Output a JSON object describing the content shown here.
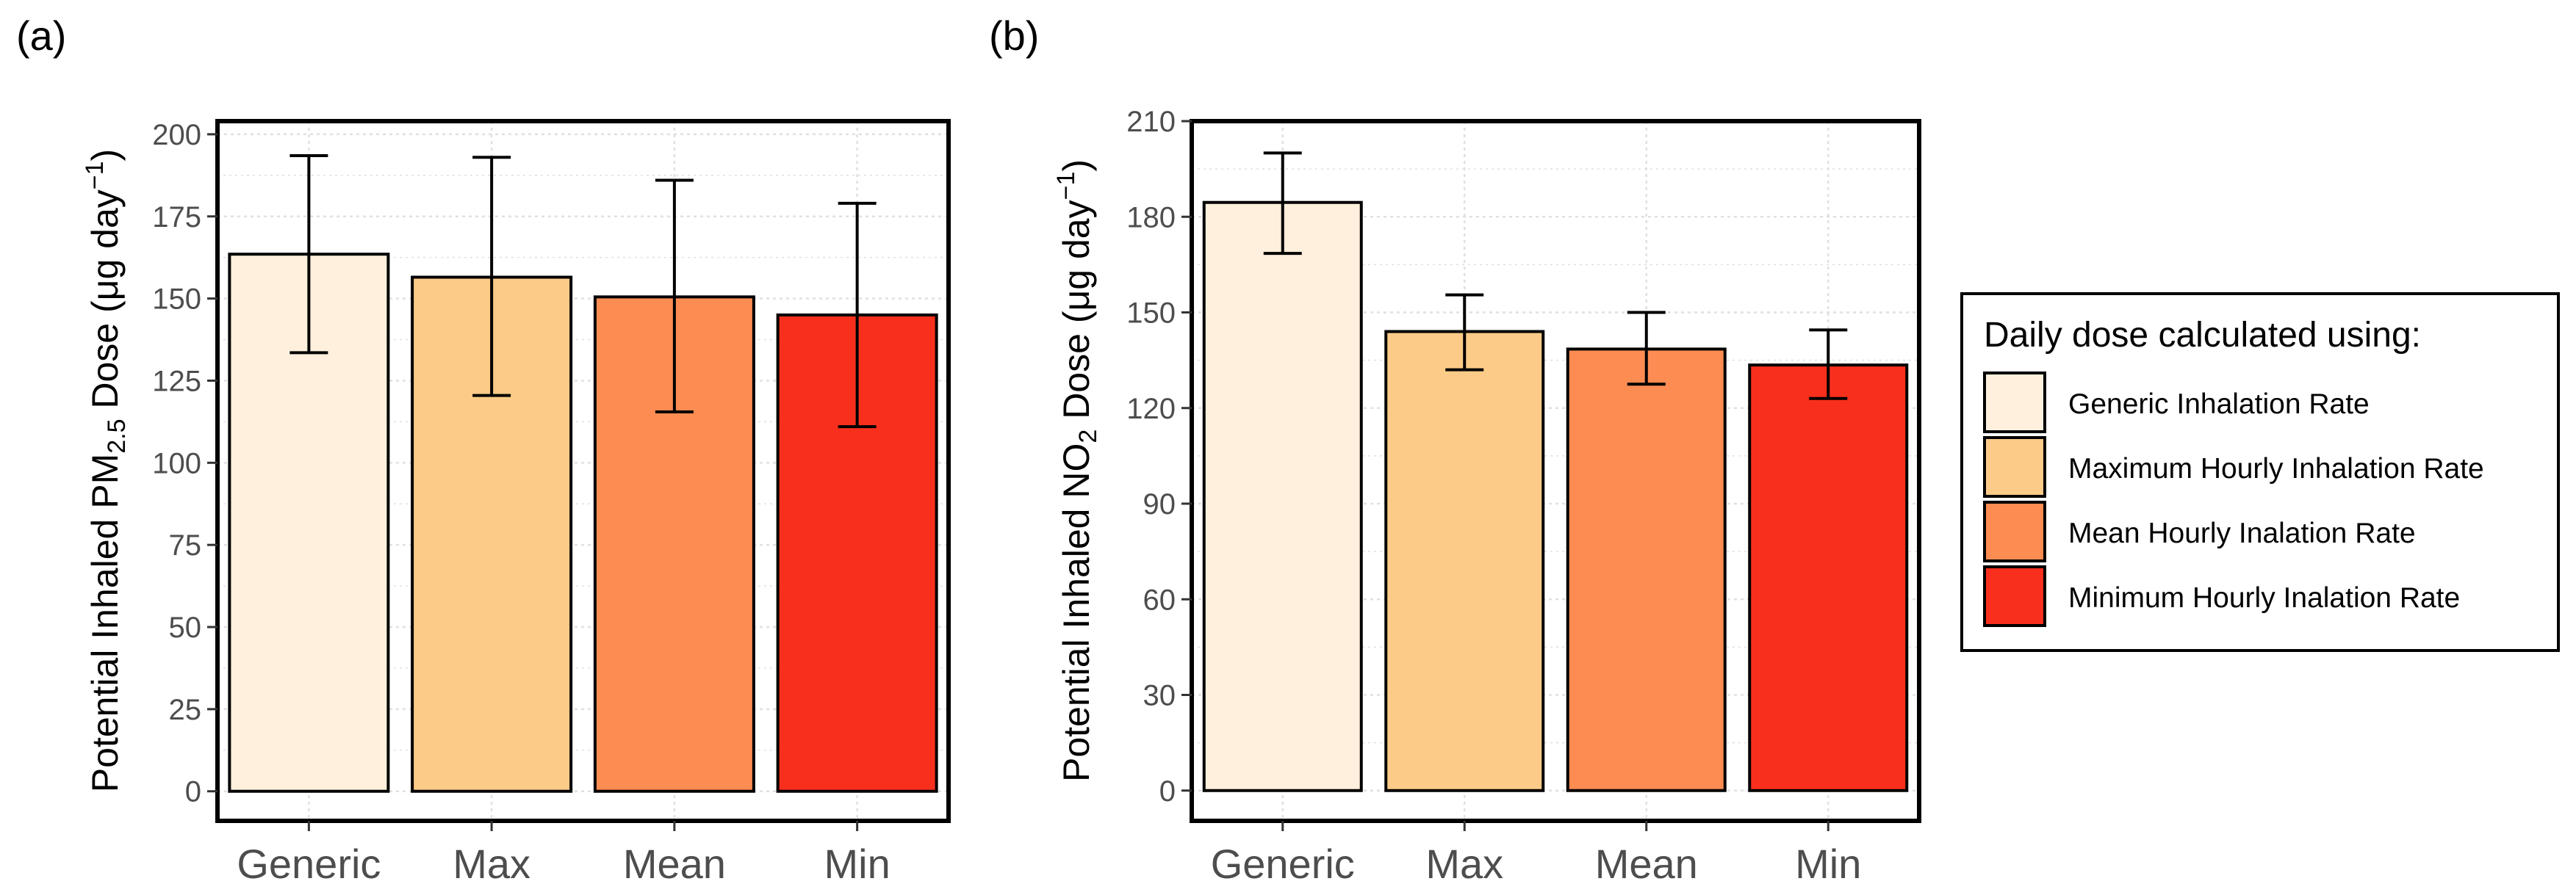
{
  "colors": {
    "generic": "#FEF0DC",
    "max": "#FDCB88",
    "mean": "#FC8C52",
    "min": "#F92F1D",
    "axis": "#000000",
    "grid": "#E0E0E0",
    "tick_text": "#4D4D4D"
  },
  "chart_data": [
    {
      "panel_label": "(a)",
      "type": "bar",
      "ylabel_parts": [
        "Potential Inhaled PM",
        "2.5",
        " Dose (μg day",
        "−1",
        ")"
      ],
      "categories": [
        "Generic",
        "Max",
        "Mean",
        "Min"
      ],
      "values": [
        163.5,
        156.5,
        150.5,
        145
      ],
      "err_low": [
        133.5,
        120.5,
        115.5,
        111
      ],
      "err_high": [
        193.5,
        193,
        186,
        179
      ],
      "ylim": [
        -9,
        204
      ],
      "yticks": [
        0,
        25,
        50,
        75,
        100,
        125,
        150,
        175,
        200
      ],
      "ytick_labels": [
        "0",
        "25",
        "50",
        "75",
        "100",
        "125",
        "150",
        "175",
        "200"
      ],
      "grid": true
    },
    {
      "panel_label": "(b)",
      "type": "bar",
      "ylabel_parts": [
        "Potential Inhaled NO",
        "2",
        " Dose (μg day",
        "−1",
        ")"
      ],
      "categories": [
        "Generic",
        "Max",
        "Mean",
        "Min"
      ],
      "values": [
        184.5,
        144,
        138.5,
        133.5
      ],
      "err_low": [
        168.5,
        132,
        127.5,
        123
      ],
      "err_high": [
        200,
        155.5,
        150,
        144.5
      ],
      "ylim": [
        -9.5,
        210
      ],
      "yticks": [
        0,
        30,
        60,
        90,
        120,
        150,
        180,
        210
      ],
      "ytick_labels": [
        "0",
        "30",
        "60",
        "90",
        "120",
        "150",
        "180",
        "210"
      ],
      "grid": true
    }
  ],
  "legend": {
    "title": "Daily dose calculated using:",
    "items": [
      {
        "label": "Generic Inhalation Rate",
        "color_key": "generic"
      },
      {
        "label": "Maximum Hourly Inhalation Rate",
        "color_key": "max"
      },
      {
        "label": "Mean Hourly Inalation Rate",
        "color_key": "mean"
      },
      {
        "label": "Minimum Hourly Inalation Rate",
        "color_key": "min"
      }
    ],
    "placement": "right"
  }
}
